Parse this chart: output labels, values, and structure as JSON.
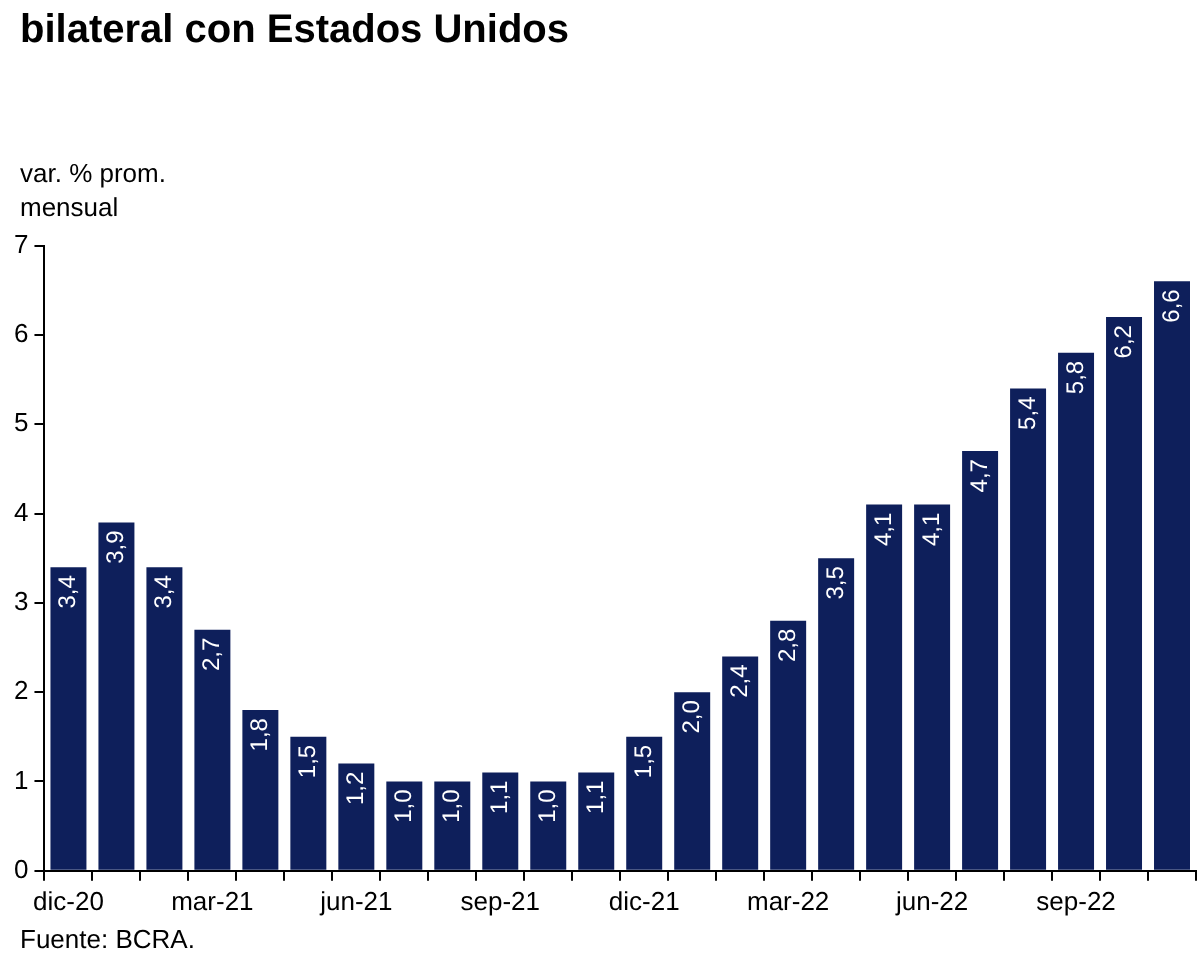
{
  "chart_data": {
    "type": "bar",
    "title": "bilateral con Estados Unidos",
    "ylabel": "var. % prom. mensual",
    "annotations": [
      "Fuente: BCRA."
    ],
    "categories": [
      "dic-20",
      null,
      null,
      "mar-21",
      null,
      null,
      "jun-21",
      null,
      null,
      "sep-21",
      null,
      null,
      "dic-21",
      null,
      null,
      "mar-22",
      null,
      null,
      "jun-22",
      null,
      null,
      "sep-22",
      null,
      null
    ],
    "values": [
      3.4,
      3.9,
      3.4,
      2.7,
      1.8,
      1.5,
      1.2,
      1.0,
      1.0,
      1.1,
      1.0,
      1.1,
      1.5,
      2.0,
      2.4,
      2.8,
      3.5,
      4.1,
      4.1,
      4.7,
      5.4,
      5.8,
      6.2,
      6.6
    ],
    "value_labels": [
      "3,4",
      "3,9",
      "3,4",
      "2,7",
      "1,8",
      "1,5",
      "1,2",
      "1,0",
      "1,0",
      "1,1",
      "1,0",
      "1,1",
      "1,5",
      "2,0",
      "2,4",
      "2,8",
      "3,5",
      "4,1",
      "4,1",
      "4,7",
      "5,4",
      "5,8",
      "6,2",
      "6,6"
    ],
    "color": "#0e1f5b",
    "ylim": [
      0,
      7
    ],
    "yticks": [
      0,
      1,
      2,
      3,
      4,
      5,
      6,
      7
    ]
  }
}
